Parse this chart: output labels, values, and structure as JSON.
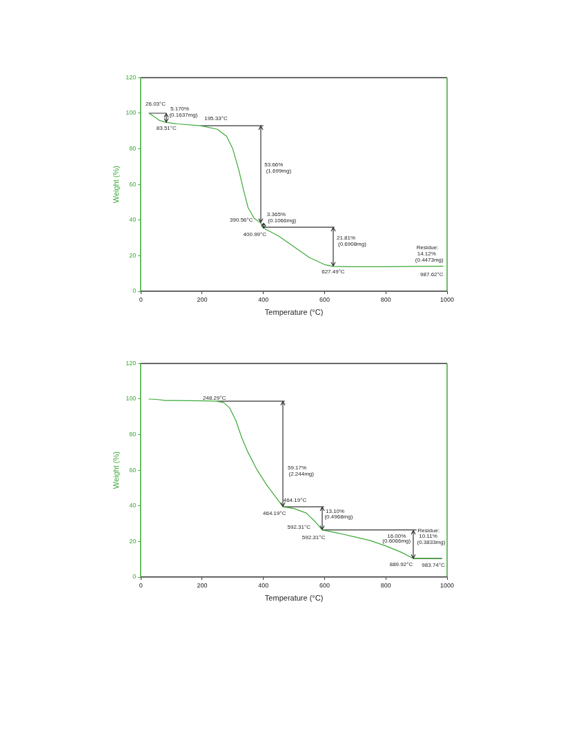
{
  "chart_data": [
    {
      "type": "line",
      "xlabel": "Temperature (°C)",
      "ylabel": "Weight (%)",
      "xlim": [
        0,
        1000
      ],
      "xticks": [
        0,
        200,
        400,
        600,
        800,
        1000
      ],
      "ylim": [
        0,
        120
      ],
      "yticks": [
        0,
        20,
        40,
        60,
        80,
        100,
        120
      ],
      "marker": "none",
      "series": [
        {
          "color": "#3aa935",
          "x": [
            26.03,
            40,
            60,
            83.51,
            120,
            195.33,
            250,
            280,
            300,
            320,
            335,
            350,
            370,
            390.56,
            400.99,
            450,
            500,
            550,
            600,
            627.49,
            700,
            800,
            900,
            987.62
          ],
          "values": [
            100,
            98.5,
            96,
            94.8,
            94,
            93,
            91,
            87,
            80,
            68,
            57,
            47,
            41,
            38.5,
            35.5,
            31,
            25,
            19,
            15,
            14,
            13.8,
            13.8,
            14,
            14.1
          ]
        },
        {
          "color": "#333333",
          "x": [
            26.03,
            83.51
          ],
          "values": [
            100,
            100
          ]
        },
        {
          "color": "#333333",
          "x": [
            195.33,
            400
          ],
          "values": [
            93,
            93
          ]
        },
        {
          "color": "#333333",
          "x": [
            400.99,
            632
          ],
          "values": [
            36,
            36
          ]
        }
      ],
      "annotations": [
        "26.03°C",
        "5.170%",
        "(0.1637mg)",
        "83.51°C",
        "195.33°C",
        "53.66%",
        "(1.699mg)",
        "390.56°C",
        "3.365%",
        "(0.1066mg)",
        "400.99°C",
        "21.81%",
        "(0.6908mg)",
        {
          "text": "627.49°C",
          "x": 627.49,
          "y": 14
        },
        "Residue:",
        "14.12%",
        "(0.4473mg)",
        "987.62°C"
      ]
    },
    {
      "type": "line",
      "xlabel": "Temperature (°C)",
      "ylabel": "Weight (%)",
      "xlim": [
        0,
        1000
      ],
      "xticks": [
        0,
        200,
        400,
        600,
        800,
        1000
      ],
      "ylim": [
        0,
        120
      ],
      "yticks": [
        0,
        20,
        40,
        60,
        80,
        100,
        120
      ],
      "marker": "none",
      "series": [
        {
          "color": "#3aa935",
          "x": [
            25,
            50,
            80,
            200,
            248.29,
            270,
            290,
            310,
            330,
            350,
            380,
            410,
            440,
            464.19,
            500,
            540,
            570,
            592.31,
            650,
            700,
            750,
            800,
            850,
            889.92,
            920,
            983.74
          ],
          "values": [
            100,
            99.8,
            99.2,
            99,
            98.8,
            98,
            95,
            88,
            78,
            70,
            60,
            52,
            45,
            39.5,
            38.5,
            36,
            31,
            26.5,
            24.5,
            22.5,
            20.5,
            17.5,
            14,
            10.5,
            10.5,
            10.5
          ]
        },
        {
          "color": "#333333",
          "x": [
            248.29,
            470
          ],
          "values": [
            98.8,
            98.8
          ]
        },
        {
          "color": "#333333",
          "x": [
            464.19,
            598
          ],
          "values": [
            39.5,
            39.5
          ]
        },
        {
          "color": "#333333",
          "x": [
            592.31,
            900
          ],
          "values": [
            26.5,
            26.5
          ]
        },
        {
          "color": "#333333",
          "x": [
            889.92,
            983.74
          ],
          "values": [
            10.5,
            10.5
          ]
        }
      ],
      "annotations": [
        "248.29°C",
        "59.17%",
        "(2.244mg)",
        {
          "text": "464.19°C",
          "x": 464.19,
          "y": 39.5
        },
        "464.19°C",
        "13.10%",
        "(0.4968mg)",
        "592.31°C",
        "592.31°C",
        {
          "text": "Residue:",
          "x": 889.92,
          "y": 10.5
        },
        "10.11%",
        "(0.3833mg)",
        "16.00%",
        "(0.6066mg)",
        "889.92°C",
        "983.74°C"
      ]
    }
  ]
}
